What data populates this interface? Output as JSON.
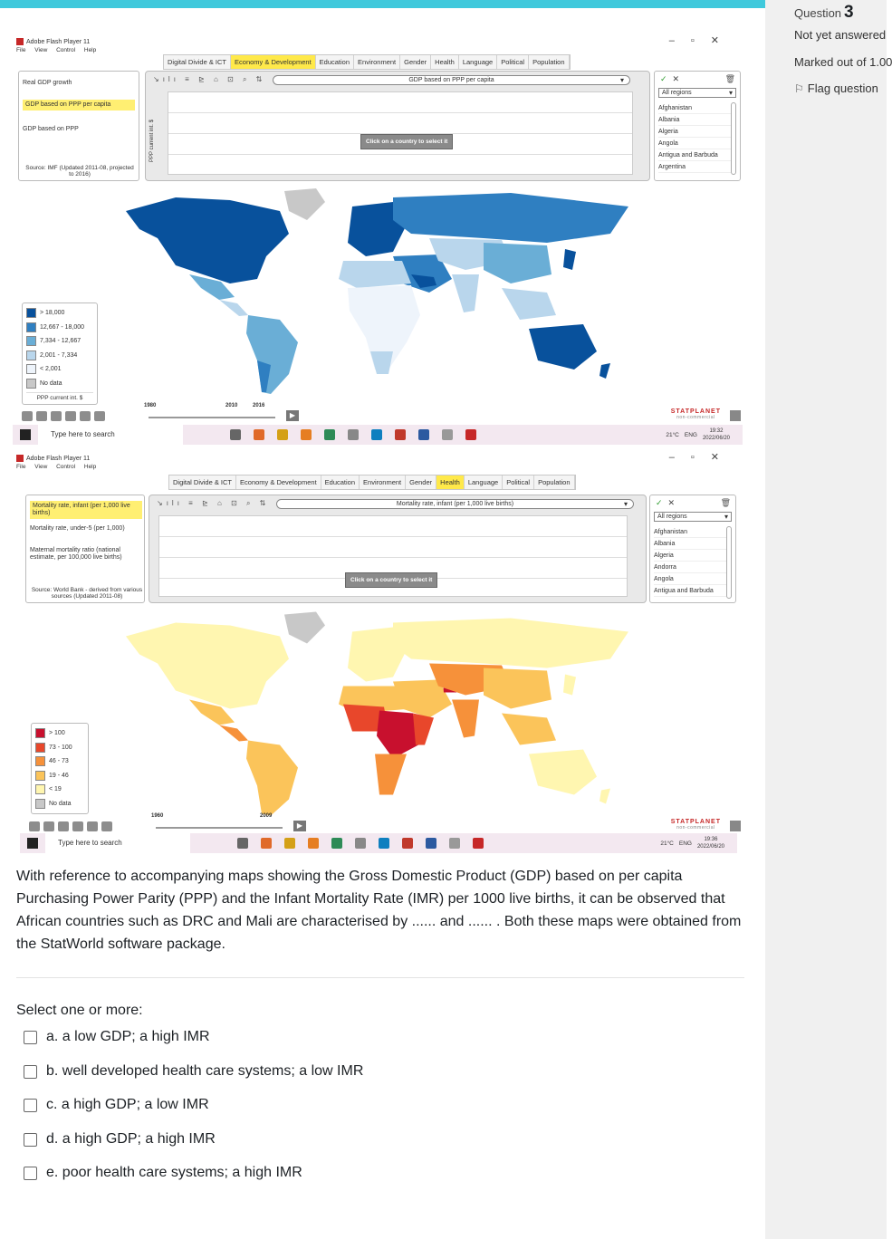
{
  "sidebar": {
    "question_label": "Question",
    "question_number": "3",
    "status": "Not yet answered",
    "marked": "Marked out of 1.00",
    "flag": "Flag question"
  },
  "flash1": {
    "window_title": "Adobe Flash Player 11",
    "menu": [
      "File",
      "View",
      "Control",
      "Help"
    ],
    "tabs": [
      "Digital Divide & ICT",
      "Economy & Development",
      "Education",
      "Environment",
      "Gender",
      "Health",
      "Language",
      "Political",
      "Population"
    ],
    "active_tab": "Economy & Development",
    "indicators": [
      "Real GDP growth",
      "GDP based on PPP per capita",
      "GDP based on PPP"
    ],
    "selected_indicator": "GDP based on PPP per capita",
    "source": "Source: IMF (Updated 2011-08, projected to 2016)",
    "chart_select": "GDP based on PPP per capita",
    "y_axis_label": "PPP current int. $",
    "click_prompt": "Click on a country to select it",
    "region_select": "All regions",
    "countries": [
      "Afghanistan",
      "Albania",
      "Algeria",
      "Angola",
      "Antigua and Barbuda",
      "Argentina"
    ],
    "legend": [
      "> 18,000",
      "12,667 - 18,000",
      "7,334 - 12,667",
      "2,001 - 7,334",
      "< 2,001",
      "No data"
    ],
    "legend_colors": [
      "#08519c",
      "#2f7fc1",
      "#6aaed6",
      "#b9d6ec",
      "#eef4fb",
      "#c8c8c8"
    ],
    "legend_unit": "PPP current int. $",
    "years": [
      "1980",
      "2010",
      "2016"
    ],
    "brand": "STATPLANET",
    "brand_sub": "non-commercial"
  },
  "taskbar1": {
    "search": "Type here to search",
    "temp": "21°C",
    "lang": "ENG",
    "time": "19:32",
    "date": "2022/06/20"
  },
  "flash2": {
    "window_title": "Adobe Flash Player 11",
    "menu": [
      "File",
      "View",
      "Control",
      "Help"
    ],
    "tabs": [
      "Digital Divide & ICT",
      "Economy & Development",
      "Education",
      "Environment",
      "Gender",
      "Health",
      "Language",
      "Political",
      "Population"
    ],
    "active_tab": "Health",
    "indicators": [
      "Mortality rate, infant (per 1,000 live births)",
      "Mortality rate, under-5 (per 1,000)",
      "Maternal mortality ratio (national estimate, per 100,000 live births)"
    ],
    "selected_indicator": "Mortality rate, infant (per 1,000 live births)",
    "source": "Source: World Bank - derived from various sources (Updated 2011-08)",
    "chart_select": "Mortality rate, infant (per 1,000 live births)",
    "click_prompt": "Click on a country to select it",
    "region_select": "All regions",
    "countries": [
      "Afghanistan",
      "Albania",
      "Algeria",
      "Andorra",
      "Angola",
      "Antigua and Barbuda"
    ],
    "legend": [
      "> 100",
      "73 - 100",
      "46 - 73",
      "19 - 46",
      "< 19",
      "No data"
    ],
    "legend_colors": [
      "#c8102e",
      "#e8472b",
      "#f6913a",
      "#fbc45a",
      "#fff6b0",
      "#c8c8c8"
    ],
    "years": [
      "1960",
      "2009"
    ],
    "brand": "STATPLANET",
    "brand_sub": "non-commercial"
  },
  "taskbar2": {
    "search": "Type here to search",
    "temp": "21°C",
    "lang": "ENG",
    "time": "19:36",
    "date": "2022/06/20"
  },
  "question": {
    "text": "With reference to accompanying maps showing the Gross Domestic Product (GDP) based on per capita Purchasing Power Parity (PPP) and the Infant Mortality Rate (IMR) per 1000 live births, it can be observed that African countries such as DRC and Mali are characterised by ...... and ...... .  Both these maps were obtained from the StatWorld software package.",
    "select_label": "Select one or more:",
    "options": [
      "a. a low GDP; a high IMR",
      "b. well developed health care systems;  a low IMR",
      "c. a high GDP;  a low IMR",
      "d. a high GDP;  a high IMR",
      "e. poor health care systems;  a high IMR"
    ]
  }
}
